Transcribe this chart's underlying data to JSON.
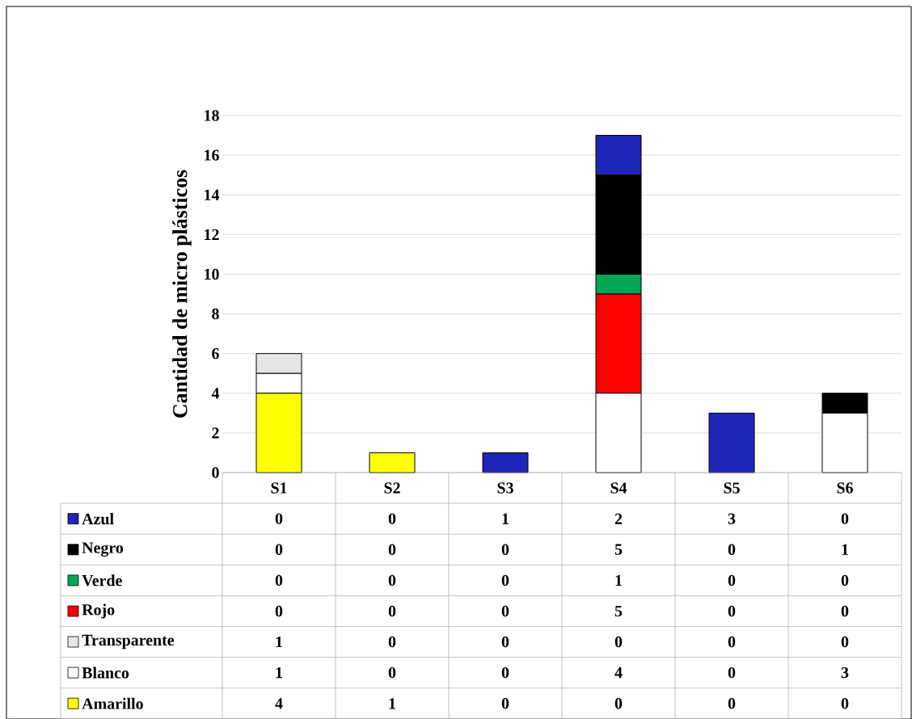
{
  "chart_data": {
    "type": "bar",
    "stacked": true,
    "ylabel": "Cantidad de micro plásticos",
    "categories": [
      "S1",
      "S2",
      "S3",
      "S4",
      "S5",
      "S6"
    ],
    "series": [
      {
        "name": "Amarillo",
        "color": "#ffff00",
        "values": [
          4,
          1,
          0,
          0,
          0,
          0
        ]
      },
      {
        "name": "Blanco",
        "color": "#ffffff",
        "values": [
          1,
          0,
          0,
          4,
          0,
          3
        ]
      },
      {
        "name": "Transparente",
        "color": "#e6e6e6",
        "values": [
          1,
          0,
          0,
          0,
          0,
          0
        ]
      },
      {
        "name": "Rojo",
        "color": "#ff0000",
        "values": [
          0,
          0,
          0,
          5,
          0,
          0
        ]
      },
      {
        "name": "Verde",
        "color": "#00a651",
        "values": [
          0,
          0,
          0,
          1,
          0,
          0
        ]
      },
      {
        "name": "Negro",
        "color": "#000000",
        "values": [
          0,
          0,
          0,
          5,
          0,
          1
        ]
      },
      {
        "name": "Azul",
        "color": "#1f24b8",
        "values": [
          0,
          0,
          1,
          2,
          3,
          0
        ]
      }
    ],
    "ylim": [
      0,
      18
    ],
    "yticks": [
      0,
      2,
      4,
      6,
      8,
      10,
      12,
      14,
      16,
      18
    ],
    "grid": "y",
    "legend": "bottom",
    "data_labels": true
  }
}
